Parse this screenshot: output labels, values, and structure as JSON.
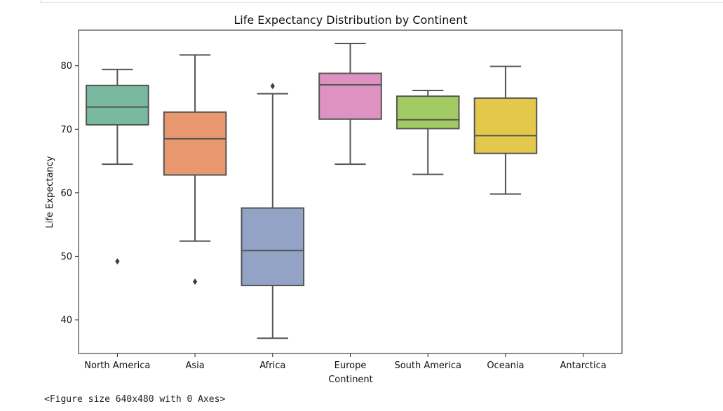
{
  "output": {
    "figure_text": "<Figure size 640x480 with 0 Axes>"
  },
  "chart_data": {
    "type": "box",
    "title": "Life Expectancy Distribution by Continent",
    "xlabel": "Continent",
    "ylabel": "Life Expectancy",
    "ylim": [
      34.7,
      85.6
    ],
    "yticks": [
      40,
      50,
      60,
      70,
      80
    ],
    "grid": false,
    "legend": "none",
    "categories": [
      "North America",
      "Asia",
      "Africa",
      "Europe",
      "South America",
      "Oceania",
      "Antarctica"
    ],
    "boxes": [
      {
        "category": "North America",
        "whisker_low": 64.5,
        "q1": 70.7,
        "median": 73.5,
        "q3": 76.9,
        "whisker_high": 79.4,
        "outliers": [
          49.2
        ],
        "color": "#78b9a0"
      },
      {
        "category": "Asia",
        "whisker_low": 52.4,
        "q1": 62.8,
        "median": 68.5,
        "q3": 72.7,
        "whisker_high": 81.7,
        "outliers": [
          46.0
        ],
        "color": "#e8976f"
      },
      {
        "category": "Africa",
        "whisker_low": 37.1,
        "q1": 45.4,
        "median": 50.9,
        "q3": 57.6,
        "whisker_high": 75.6,
        "outliers": [
          76.8
        ],
        "color": "#93a3c5"
      },
      {
        "category": "Europe",
        "whisker_low": 64.5,
        "q1": 71.6,
        "median": 77.0,
        "q3": 78.8,
        "whisker_high": 83.5,
        "outliers": [],
        "color": "#de92c1"
      },
      {
        "category": "South America",
        "whisker_low": 62.9,
        "q1": 70.1,
        "median": 71.5,
        "q3": 75.2,
        "whisker_high": 76.1,
        "outliers": [],
        "color": "#a3cb63"
      },
      {
        "category": "Oceania",
        "whisker_low": 59.8,
        "q1": 66.2,
        "median": 69.0,
        "q3": 74.9,
        "whisker_high": 79.9,
        "outliers": [],
        "color": "#e3c84c"
      },
      {
        "category": "Antarctica"
      }
    ]
  }
}
